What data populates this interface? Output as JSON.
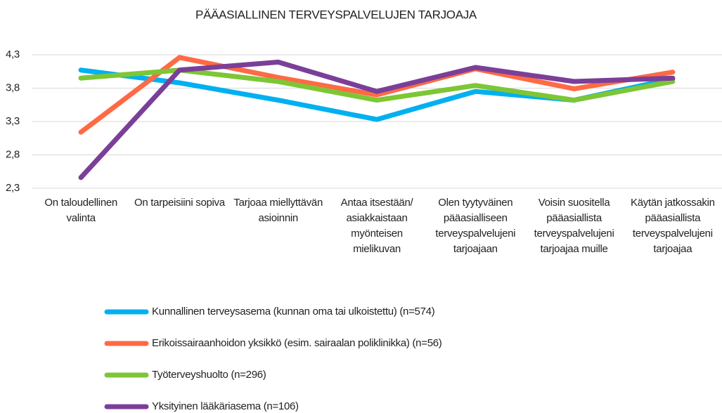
{
  "chart_data": {
    "type": "line",
    "title": "PÄÄASIALLINEN TERVEYSPALVELUJEN TARJOAJA",
    "categories": [
      "On taloudellinen valinta",
      "On tarpeisiini sopiva",
      "Tarjoaa miellyttävän asioinnin",
      "Antaa itsestään/ asiakkaistaan myönteisen mielikuvan",
      "Olen tyytyväinen pääasialliseen terveyspalvelujeni tarjoajaan",
      "Voisin suositella pääasiallista terveyspalvelujeni tarjoajaa muille",
      "Käytän jatkossakin pääasiallista terveyspalvelujeni tarjoajaa"
    ],
    "series": [
      {
        "name": "Kunnallinen terveysasema (kunnan oma tai ulkoistettu) (n=574)",
        "color": "#00b0f0",
        "values": [
          4.07,
          3.88,
          3.62,
          3.33,
          3.75,
          3.62,
          3.94
        ]
      },
      {
        "name": "Erikoissairaanhoidon yksikkö (esim. sairaalan poliklinikka) (n=56)",
        "color": "#ff6a45",
        "values": [
          3.14,
          4.26,
          3.96,
          3.7,
          4.09,
          3.79,
          4.04
        ]
      },
      {
        "name": "Työterveyshuolto (n=296)",
        "color": "#7dc635",
        "values": [
          3.95,
          4.07,
          3.9,
          3.62,
          3.84,
          3.62,
          3.9
        ]
      },
      {
        "name": "Yksityinen lääkäriasema (n=106)",
        "color": "#7b3f98",
        "values": [
          2.46,
          4.07,
          4.19,
          3.75,
          4.11,
          3.9,
          3.95
        ]
      }
    ],
    "ylim": [
      2.3,
      4.3
    ],
    "yticks": [
      {
        "value": 2.3,
        "label": "2,3"
      },
      {
        "value": 2.8,
        "label": "2,8"
      },
      {
        "value": 3.3,
        "label": "3,3"
      },
      {
        "value": 3.8,
        "label": "3,8"
      },
      {
        "value": 4.3,
        "label": "4,3"
      }
    ],
    "grid": true
  }
}
